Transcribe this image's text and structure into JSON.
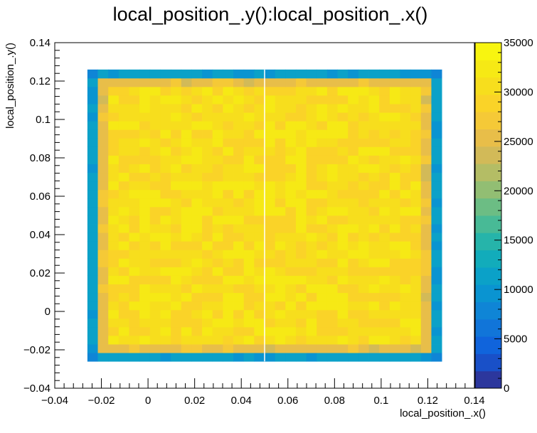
{
  "chart_data": {
    "type": "heatmap",
    "title": "local_position_.y():local_position_.x()",
    "xlabel": "local_position_.x()",
    "ylabel": "local_position_.y()",
    "xlim": [
      -0.04,
      0.14
    ],
    "ylim": [
      -0.04,
      0.14
    ],
    "zlim": [
      0,
      35000
    ],
    "x_tick_labels": [
      "−0.04",
      "−0.02",
      "0",
      "0.02",
      "0.04",
      "0.06",
      "0.08",
      "0.1",
      "0.12",
      "0.14"
    ],
    "x_tick_values": [
      -0.04,
      -0.02,
      0,
      0.02,
      0.04,
      0.06,
      0.08,
      0.1,
      0.12,
      0.14
    ],
    "y_tick_labels": [
      "−0.04",
      "−0.02",
      "0",
      "0.02",
      "0.04",
      "0.06",
      "0.08",
      "0.1",
      "0.12",
      "0.14"
    ],
    "y_tick_values": [
      -0.04,
      -0.02,
      0,
      0.02,
      0.04,
      0.06,
      0.08,
      0.1,
      0.12,
      0.14
    ],
    "z_tick_labels": [
      "0",
      "5000",
      "10000",
      "15000",
      "20000",
      "25000",
      "30000",
      "35000"
    ],
    "z_tick_values": [
      0,
      5000,
      10000,
      15000,
      20000,
      25000,
      30000,
      35000
    ],
    "colormap": "parula",
    "grid": false,
    "bins": {
      "x_range": [
        -0.026,
        0.126
      ],
      "y_range": [
        -0.026,
        0.126
      ],
      "nx": 34,
      "ny": 34,
      "edge_value": 11000,
      "corner_value": 7500,
      "inner_ring_value": 25500,
      "bulk_value_range": [
        28000,
        33000
      ],
      "gap_x": 0.05
    }
  }
}
